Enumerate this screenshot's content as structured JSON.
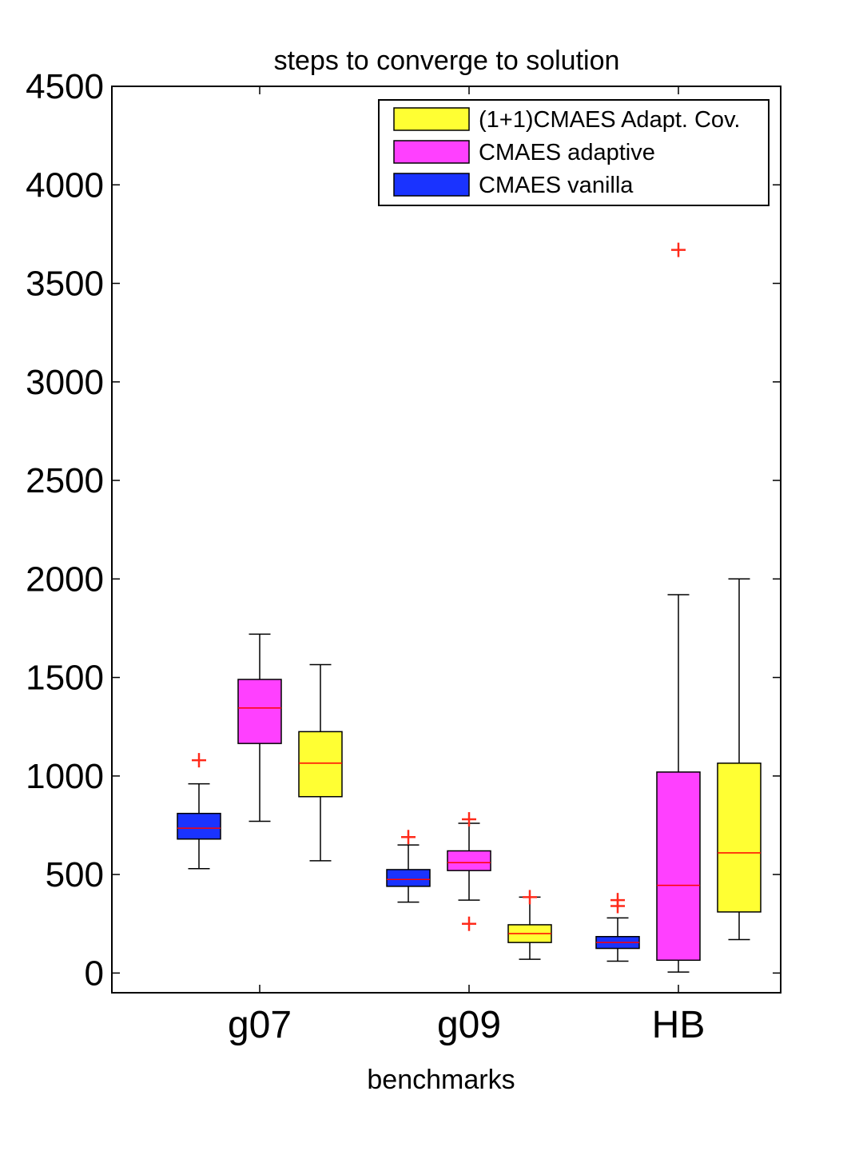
{
  "chart_data": {
    "type": "box",
    "title": "steps to converge to solution",
    "xlabel": "benchmarks",
    "ylabel": "",
    "ylim": [
      -100,
      4500
    ],
    "yticks": [
      0,
      500,
      1000,
      1500,
      2000,
      2500,
      3000,
      3500,
      4000,
      4500
    ],
    "categories": [
      "g07",
      "g09",
      "HB"
    ],
    "legend_position": "top-right",
    "legend_order": [
      "(1+1)CMAES Adapt. Cov.",
      "CMAES adaptive",
      "CMAES vanilla"
    ],
    "median_color": "#ff0000",
    "outlier_color": "#ff2a1a",
    "series": [
      {
        "name": "CMAES vanilla",
        "color": "#1a33ff",
        "boxes": [
          {
            "category": "g07",
            "whisker_low": 530,
            "q1": 680,
            "median": 735,
            "q3": 810,
            "whisker_high": 960,
            "outliers": [
              1080
            ]
          },
          {
            "category": "g09",
            "whisker_low": 360,
            "q1": 440,
            "median": 475,
            "q3": 525,
            "whisker_high": 650,
            "outliers": [
              690
            ]
          },
          {
            "category": "HB",
            "whisker_low": 60,
            "q1": 125,
            "median": 155,
            "q3": 185,
            "whisker_high": 280,
            "outliers": [
              340,
              370
            ]
          }
        ]
      },
      {
        "name": "CMAES adaptive",
        "color": "#ff40ff",
        "boxes": [
          {
            "category": "g07",
            "whisker_low": 770,
            "q1": 1165,
            "median": 1345,
            "q3": 1490,
            "whisker_high": 1720,
            "outliers": []
          },
          {
            "category": "g09",
            "whisker_low": 370,
            "q1": 520,
            "median": 560,
            "q3": 620,
            "whisker_high": 760,
            "outliers": [
              250,
              780
            ]
          },
          {
            "category": "HB",
            "whisker_low": 5,
            "q1": 65,
            "median": 445,
            "q3": 1020,
            "whisker_high": 1920,
            "outliers": [
              3670
            ]
          }
        ]
      },
      {
        "name": "(1+1)CMAES Adapt. Cov.",
        "color": "#ffff33",
        "boxes": [
          {
            "category": "g07",
            "whisker_low": 570,
            "q1": 895,
            "median": 1065,
            "q3": 1225,
            "whisker_high": 1565,
            "outliers": []
          },
          {
            "category": "g09",
            "whisker_low": 70,
            "q1": 155,
            "median": 200,
            "q3": 245,
            "whisker_high": 385,
            "outliers": [
              385
            ]
          },
          {
            "category": "HB",
            "whisker_low": 170,
            "q1": 310,
            "median": 610,
            "q3": 1065,
            "whisker_high": 2000,
            "outliers": []
          }
        ]
      }
    ]
  }
}
